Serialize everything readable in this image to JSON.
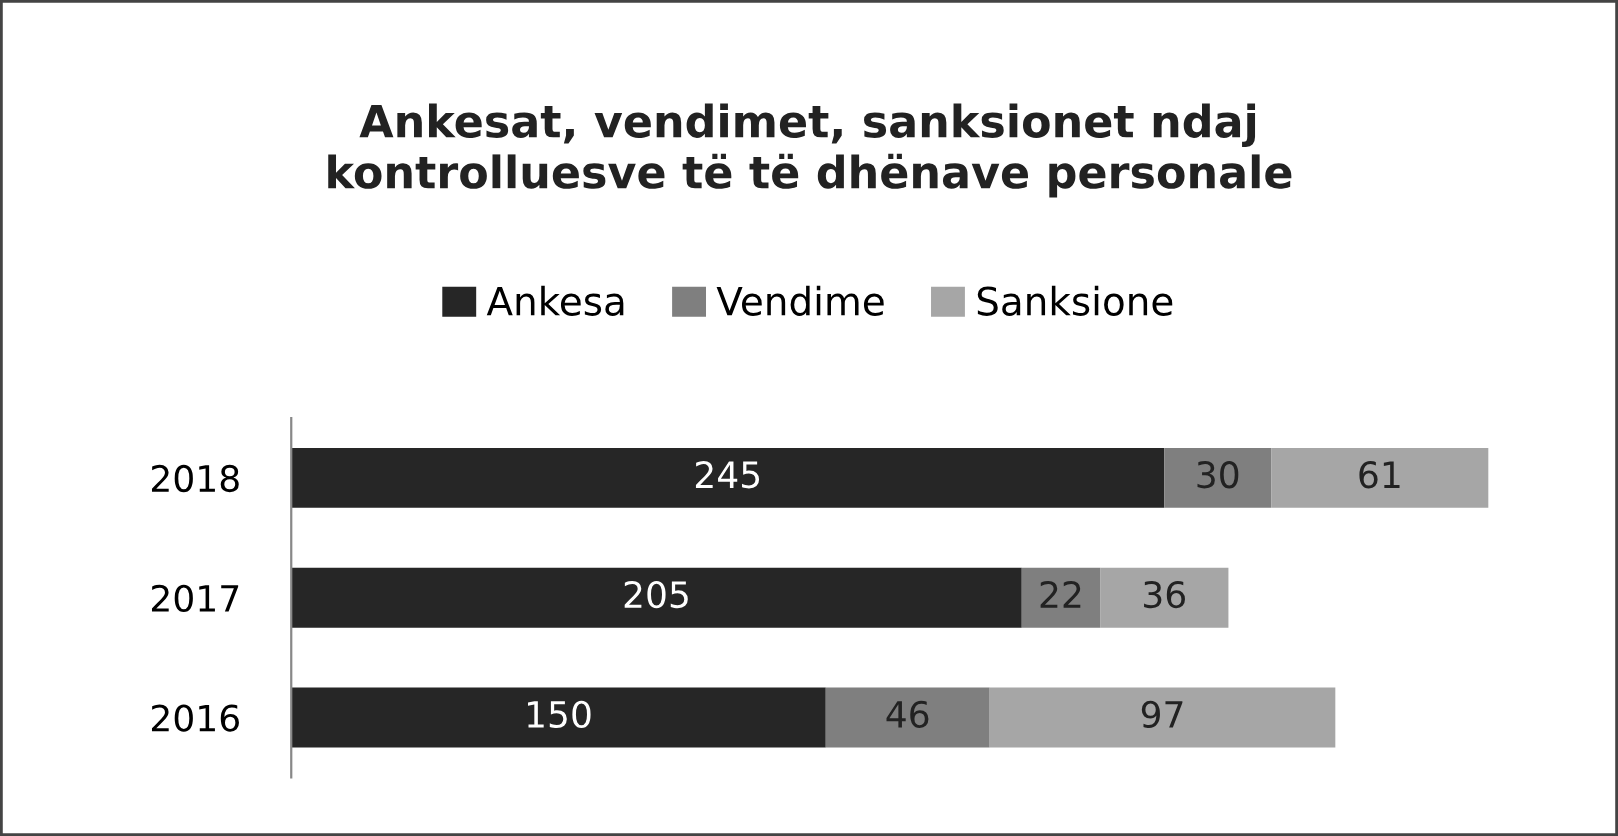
{
  "chart_data": {
    "type": "bar",
    "orientation": "horizontal",
    "stacked": true,
    "title": "Ankesat, vendimet, sanksionet ndaj\nkontrolluesve të të dhënave personale",
    "categories": [
      "2018",
      "2017",
      "2016"
    ],
    "series": [
      {
        "name": "Ankesa",
        "color": "#262626",
        "values": [
          245,
          205,
          150
        ]
      },
      {
        "name": "Vendime",
        "color": "#7f7f7f",
        "values": [
          30,
          22,
          46
        ]
      },
      {
        "name": "Sanksione",
        "color": "#a6a6a6",
        "values": [
          61,
          36,
          97
        ]
      }
    ],
    "data_labels": true,
    "legend": "top",
    "grid": false
  }
}
